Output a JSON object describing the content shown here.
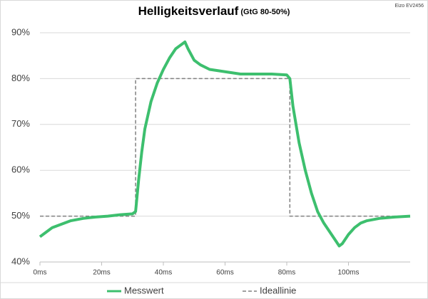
{
  "chart_data": {
    "type": "line",
    "title": "Helligkeitsverlauf",
    "subtitle": "(GtG 80-50%)",
    "annotation": "Eizo EV2456",
    "xlim": [
      0,
      120
    ],
    "ylim": [
      40,
      90
    ],
    "xticks": [
      {
        "value": 0,
        "label": "0ms"
      },
      {
        "value": 20,
        "label": "20ms"
      },
      {
        "value": 40,
        "label": "40ms"
      },
      {
        "value": 60,
        "label": "60ms"
      },
      {
        "value": 80,
        "label": "80ms"
      },
      {
        "value": 100,
        "label": "100ms"
      }
    ],
    "yticks": [
      {
        "value": 40,
        "label": "40%"
      },
      {
        "value": 50,
        "label": "50%"
      },
      {
        "value": 60,
        "label": "60%"
      },
      {
        "value": 70,
        "label": "70%"
      },
      {
        "value": 80,
        "label": "80%"
      },
      {
        "value": 90,
        "label": "90%"
      }
    ],
    "grid": true,
    "legend": "bottom",
    "series": [
      {
        "name": "Messwert",
        "color": "#3dbf6e",
        "dash": false,
        "x": [
          0,
          2,
          4,
          6,
          8,
          10,
          14,
          18,
          22,
          26,
          30,
          31,
          32,
          33,
          34,
          36,
          38,
          40,
          42,
          44,
          46,
          47,
          48,
          50,
          52,
          55,
          60,
          65,
          70,
          75,
          80,
          81,
          82,
          84,
          86,
          88,
          90,
          92,
          94,
          96,
          97,
          98,
          100,
          102,
          104,
          106,
          110,
          115,
          120
        ],
        "values": [
          45.5,
          46.5,
          47.5,
          48,
          48.5,
          49,
          49.5,
          49.8,
          50,
          50.3,
          50.5,
          51,
          58,
          64,
          69,
          75,
          79,
          82,
          84.5,
          86.5,
          87.5,
          88,
          86.5,
          84,
          83,
          82,
          81.5,
          81,
          81,
          81,
          80.8,
          80,
          74,
          66,
          60,
          55,
          51,
          48.5,
          46.5,
          44.5,
          43.5,
          44,
          46,
          47.5,
          48.5,
          49,
          49.5,
          49.8,
          50
        ]
      },
      {
        "name": "Ideallinie",
        "color": "#808080",
        "dash": true,
        "x": [
          0,
          31,
          31,
          81,
          81,
          120
        ],
        "values": [
          50,
          50,
          80,
          80,
          50,
          50
        ]
      }
    ]
  }
}
